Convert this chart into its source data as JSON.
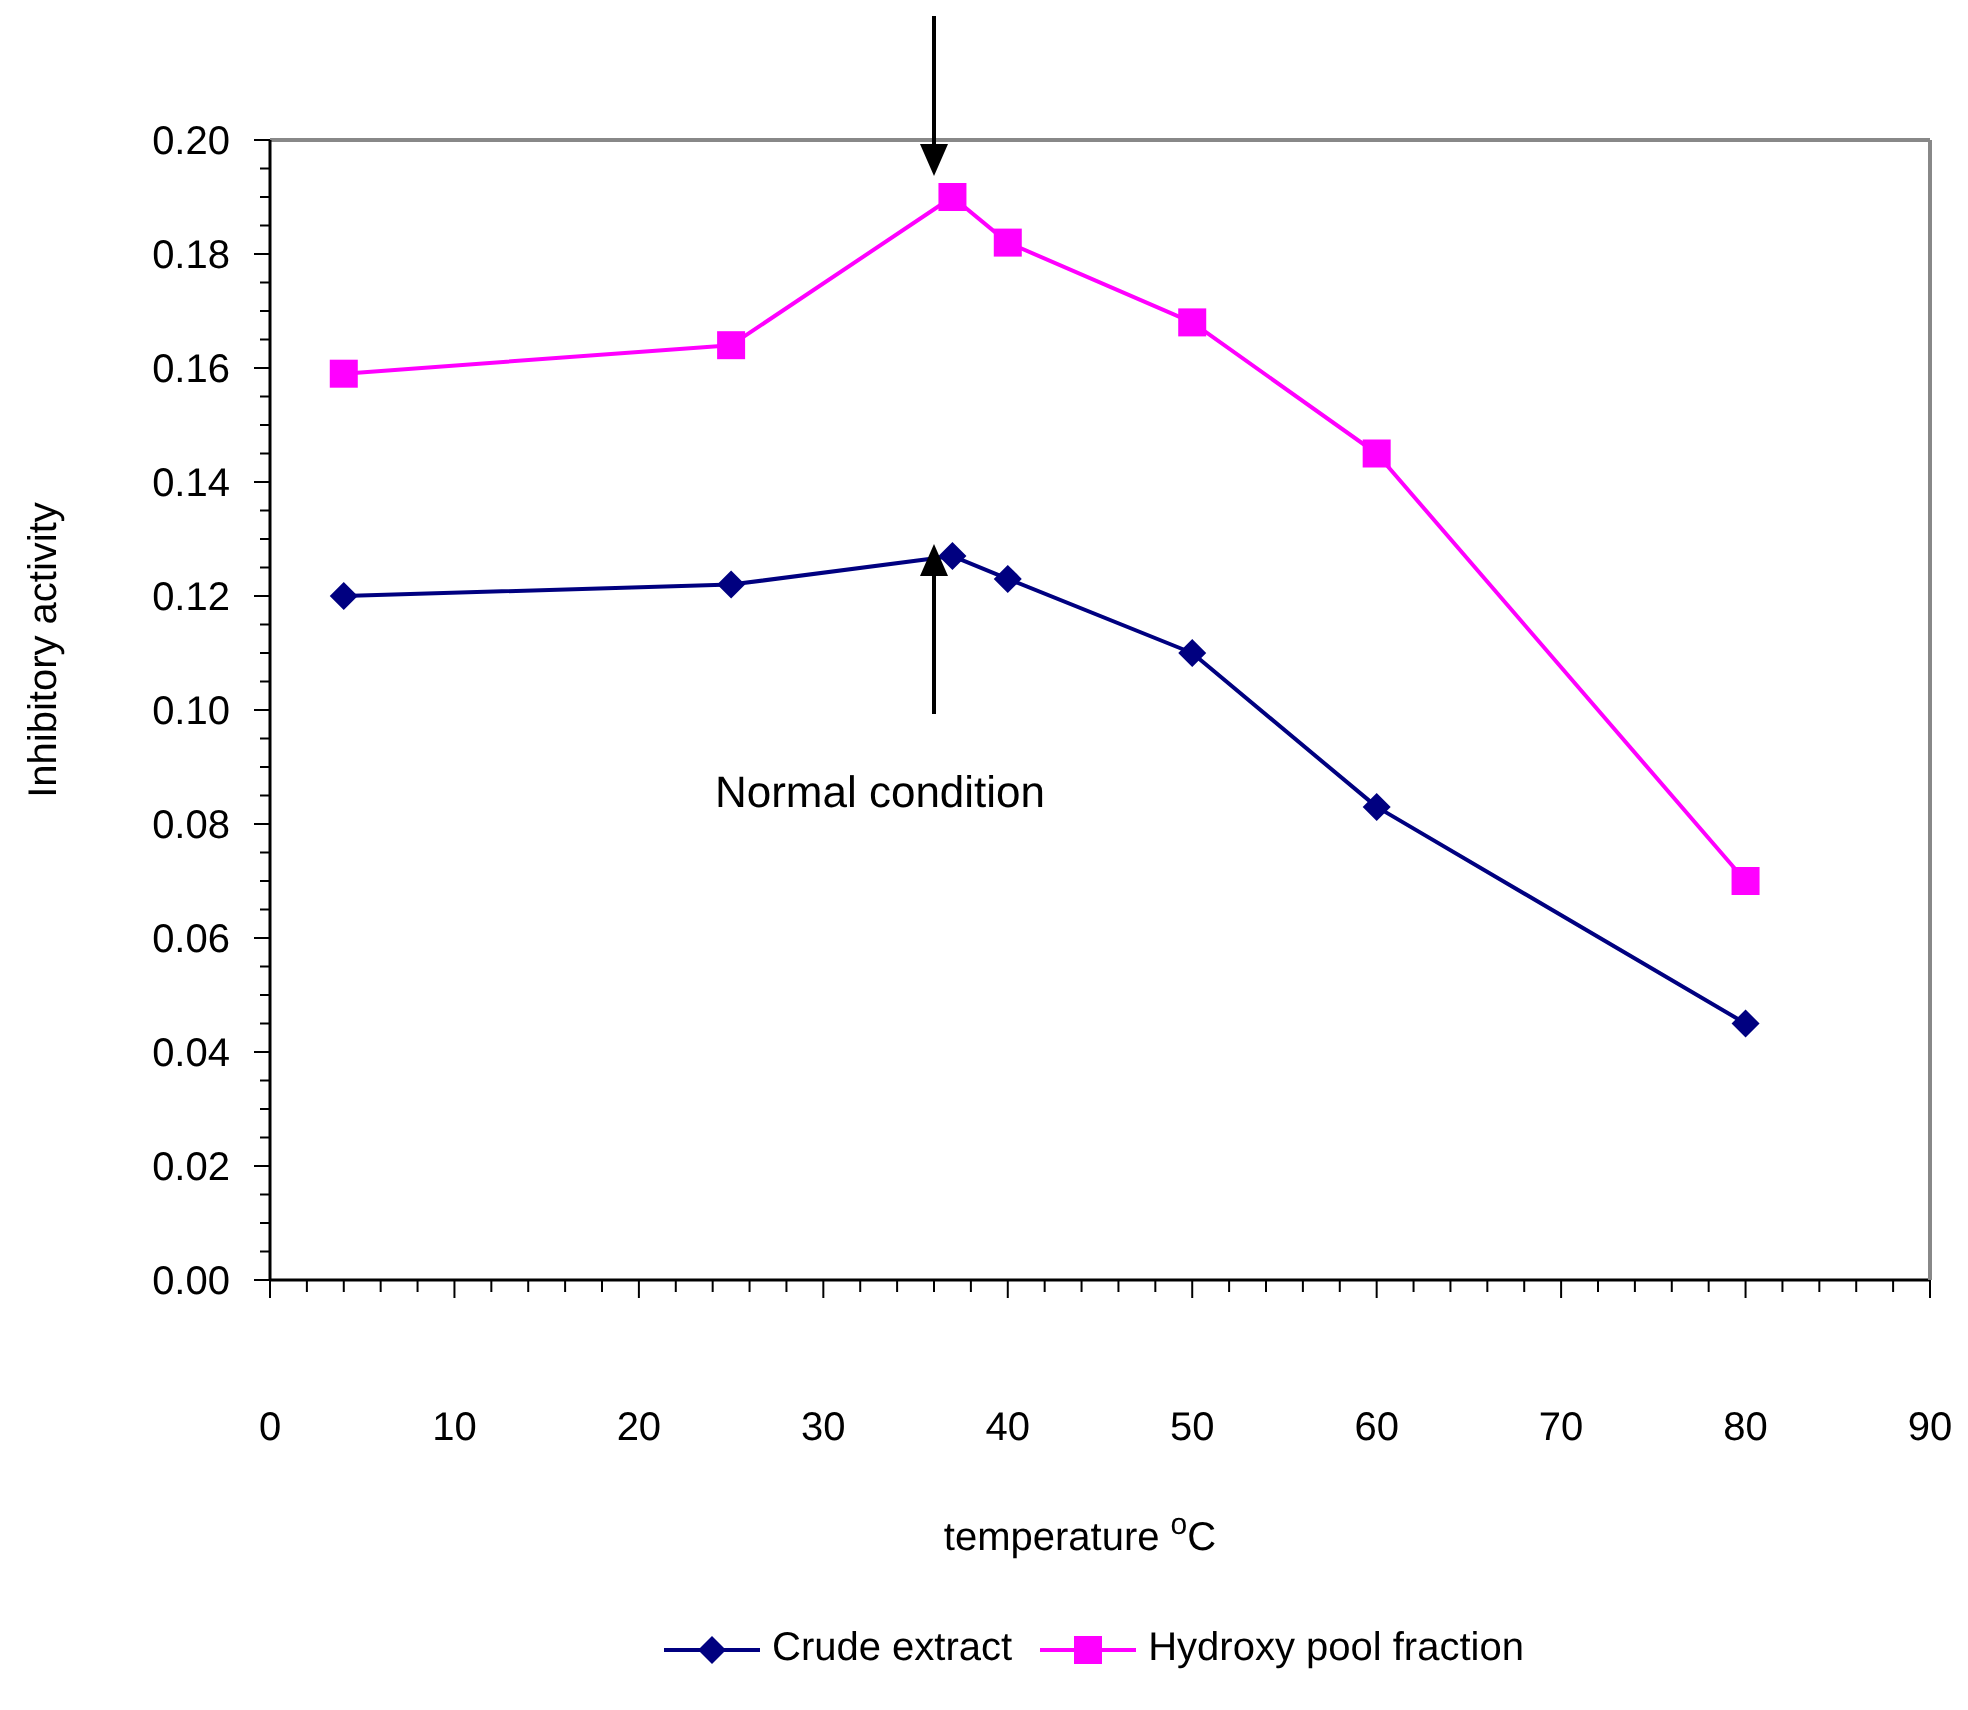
{
  "chart_data": {
    "type": "line",
    "xlabel": "temperature $^{o}$C",
    "ylabel": "Inhibitory activity",
    "x": [
      4,
      25,
      37,
      40,
      50,
      60,
      80
    ],
    "series": [
      {
        "name": "Crude extract",
        "color": "#000080",
        "marker": "diamond",
        "values": [
          0.12,
          0.122,
          0.127,
          0.123,
          0.11,
          0.083,
          0.045
        ]
      },
      {
        "name": "Hydroxy pool fraction",
        "color": "#ff00ff",
        "marker": "square",
        "values": [
          0.159,
          0.164,
          0.19,
          0.182,
          0.168,
          0.145,
          0.07
        ]
      }
    ],
    "xlim": [
      0,
      90
    ],
    "xticks": [
      0,
      {
        "value": 2,
        "label": null
      },
      {
        "value": 4,
        "label": null
      },
      {
        "value": 6,
        "label": null
      },
      {
        "value": 8,
        "label": null
      },
      10,
      {
        "value": 12,
        "label": null
      },
      {
        "value": 14,
        "label": null
      },
      {
        "value": 16,
        "label": null
      },
      {
        "value": 18,
        "label": null
      },
      20,
      {
        "value": 22,
        "label": null
      },
      {
        "value": 24,
        "label": null
      },
      {
        "value": 26,
        "label": null
      },
      {
        "value": 28,
        "label": null
      },
      30,
      {
        "value": 32,
        "label": null
      },
      {
        "value": 34,
        "label": null
      },
      {
        "value": 36,
        "label": null
      },
      {
        "value": 38,
        "label": null
      },
      40,
      {
        "value": 42,
        "label": null
      },
      {
        "value": 44,
        "label": null
      },
      {
        "value": 46,
        "label": null
      },
      {
        "value": 48,
        "label": null
      },
      50,
      {
        "value": 52,
        "label": null
      },
      {
        "value": 54,
        "label": null
      },
      {
        "value": 56,
        "label": null
      },
      {
        "value": 58,
        "label": null
      },
      60,
      {
        "value": 62,
        "label": null
      },
      {
        "value": 64,
        "label": null
      },
      {
        "value": 66,
        "label": null
      },
      {
        "value": 68,
        "label": null
      },
      70,
      {
        "value": 72,
        "label": null
      },
      {
        "value": 74,
        "label": null
      },
      {
        "value": 76,
        "label": null
      },
      {
        "value": 78,
        "label": null
      },
      80,
      {
        "value": 82,
        "label": null
      },
      {
        "value": 84,
        "label": null
      },
      {
        "value": 86,
        "label": null
      },
      {
        "value": 88,
        "label": null
      },
      90
    ],
    "ylim": [
      0,
      0.2
    ],
    "yticks": [
      {
        "value": 0,
        "label": "0.00"
      },
      {
        "value": 0.005,
        "label": null
      },
      {
        "value": 0.01,
        "label": null
      },
      {
        "value": 0.015,
        "label": null
      },
      {
        "value": 0.02,
        "label": "0.02"
      },
      {
        "value": 0.025,
        "label": null
      },
      {
        "value": 0.03,
        "label": null
      },
      {
        "value": 0.035,
        "label": null
      },
      {
        "value": 0.04,
        "label": "0.04"
      },
      {
        "value": 0.045,
        "label": null
      },
      {
        "value": 0.05,
        "label": null
      },
      {
        "value": 0.055,
        "label": null
      },
      {
        "value": 0.06,
        "label": "0.06"
      },
      {
        "value": 0.065,
        "label": null
      },
      {
        "value": 0.07,
        "label": null
      },
      {
        "value": 0.075,
        "label": null
      },
      {
        "value": 0.08,
        "label": "0.08"
      },
      {
        "value": 0.085,
        "label": null
      },
      {
        "value": 0.09,
        "label": null
      },
      {
        "value": 0.095,
        "label": null
      },
      {
        "value": 0.1,
        "label": "0.10"
      },
      {
        "value": 0.105,
        "label": null
      },
      {
        "value": 0.11,
        "label": null
      },
      {
        "value": 0.115,
        "label": null
      },
      {
        "value": 0.12,
        "label": "0.12"
      },
      {
        "value": 0.125,
        "label": null
      },
      {
        "value": 0.13,
        "label": null
      },
      {
        "value": 0.135,
        "label": null
      },
      {
        "value": 0.14,
        "label": "0.14"
      },
      {
        "value": 0.145,
        "label": null
      },
      {
        "value": 0.15,
        "label": null
      },
      {
        "value": 0.155,
        "label": null
      },
      {
        "value": 0.16,
        "label": "0.16"
      },
      {
        "value": 0.165,
        "label": null
      },
      {
        "value": 0.17,
        "label": null
      },
      {
        "value": 0.175,
        "label": null
      },
      {
        "value": 0.18,
        "label": "0.18"
      },
      {
        "value": 0.185,
        "label": null
      },
      {
        "value": 0.19,
        "label": null
      },
      {
        "value": 0.195,
        "label": null
      },
      {
        "value": 0.2,
        "label": "0.20"
      }
    ],
    "grid": false,
    "legend": "bottom",
    "line_style": "solid",
    "annotations": [
      "Normal condition"
    ]
  }
}
